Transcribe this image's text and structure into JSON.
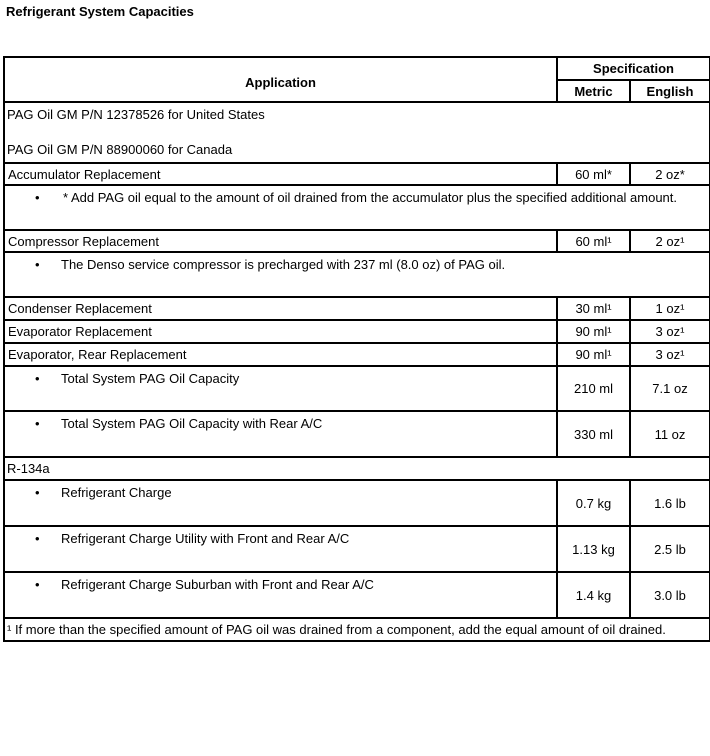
{
  "title": "Refrigerant System Capacities",
  "header": {
    "application": "Application",
    "specification": "Specification",
    "metric": "Metric",
    "english": "English"
  },
  "pag_us": "PAG Oil GM P/N 12378526 for United States",
  "pag_ca": "PAG Oil GM P/N 88900060 for Canada",
  "rows": [
    {
      "label": "Accumulator Replacement",
      "metric": "60 ml*",
      "english": "2 oz*"
    },
    {
      "note": "* Add PAG oil equal to the amount of oil drained from the accumulator plus the specified additional amount."
    },
    {
      "label": "Compressor Replacement",
      "metric": "60 ml¹",
      "english": "2 oz¹"
    },
    {
      "note": "The Denso service compressor is precharged with 237 ml (8.0 oz) of PAG oil."
    },
    {
      "label": "Condenser Replacement",
      "metric": "30 ml¹",
      "english": "1 oz¹"
    },
    {
      "label": "Evaporator Replacement",
      "metric": "90 ml¹",
      "english": "3 oz¹"
    },
    {
      "label": "Evaporator, Rear Replacement",
      "metric": "90 ml¹",
      "english": "3 oz¹"
    },
    {
      "label": "Total System PAG Oil Capacity",
      "metric": "210 ml",
      "english": "7.1 oz"
    },
    {
      "label": "Total System PAG Oil Capacity with Rear A/C",
      "metric": "330 ml",
      "english": "11 oz"
    }
  ],
  "refrigerant": "R-134a",
  "charges": [
    {
      "label": "Refrigerant Charge",
      "metric": "0.7 kg",
      "english": "1.6 lb"
    },
    {
      "label": "Refrigerant Charge Utility with Front and Rear A/C",
      "metric": "1.13 kg",
      "english": "2.5 lb"
    },
    {
      "label": "Refrigerant Charge Suburban with Front and Rear A/C",
      "metric": "1.4 kg",
      "english": "3.0 lb"
    }
  ],
  "footnote": "¹ If more than the specified amount of PAG oil was drained from a component, add the equal amount of oil drained."
}
